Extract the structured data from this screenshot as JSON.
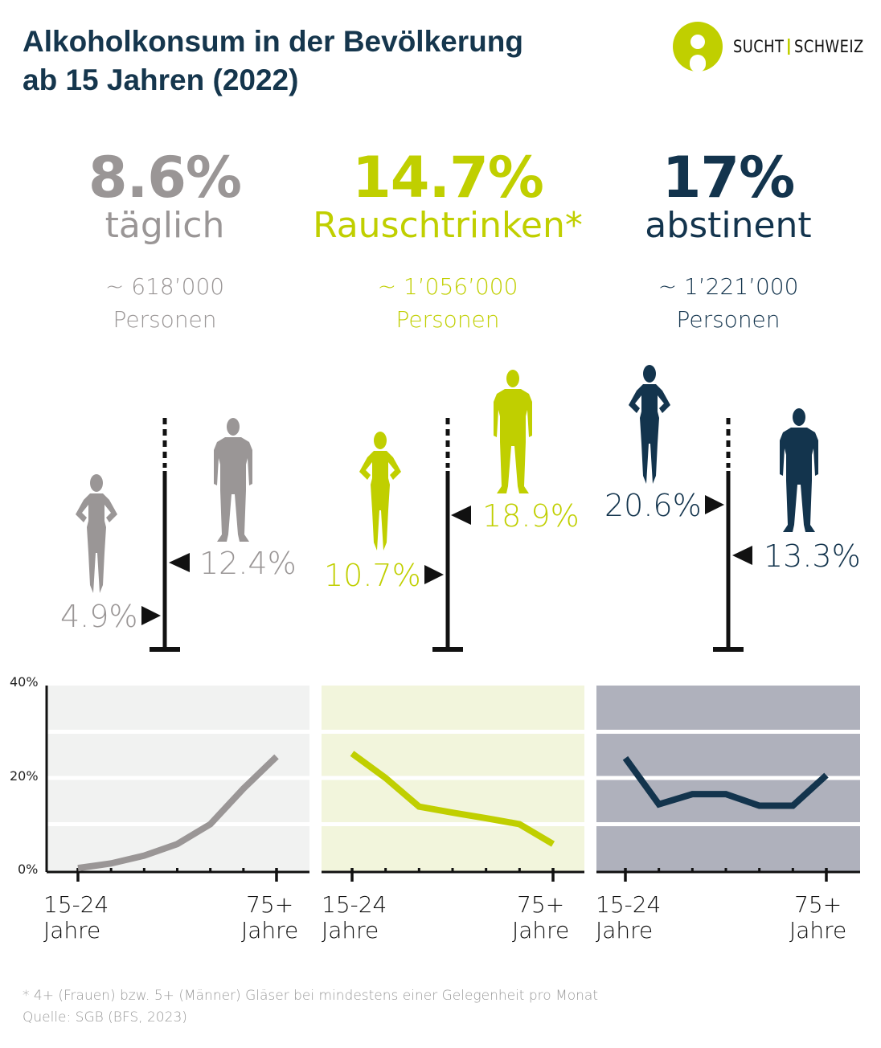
{
  "title_line1": "Alkoholkonsum in der Bevölkerung",
  "title_line2": "ab 15 Jahren (2022)",
  "logo": {
    "left": "SUCHT",
    "right": "SCHWEIZ"
  },
  "colors": {
    "grey": "#9a9696",
    "green": "#c0cf00",
    "navy": "#13344d",
    "title": "#15364d"
  },
  "stats": [
    {
      "value": "8.6%",
      "label": "täglich",
      "count": "~ 618’000",
      "unit": "Personen",
      "women": "4.9%",
      "men": "12.4%"
    },
    {
      "value": "14.7%",
      "label": "Rauschtrinken*",
      "count": "~ 1’056’000",
      "unit": "Personen",
      "women": "10.7%",
      "men": "18.9%"
    },
    {
      "value": "17%",
      "label": "abstinent",
      "count": "~ 1’221’000",
      "unit": "Personen",
      "women": "20.6%",
      "men": "13.3%"
    }
  ],
  "chart_data": [
    {
      "type": "line",
      "ylim": [
        0,
        40
      ],
      "yticks": [
        "0%",
        "20%",
        "40%"
      ],
      "grid": true,
      "categories": [
        "15-24 Jahre",
        "",
        "",
        "",
        "",
        "",
        "75+ Jahre"
      ],
      "values": [
        0.5,
        1.5,
        3.2,
        5.7,
        10,
        17.7,
        24.6
      ],
      "color": "#9a9696",
      "background": "#f1f2f1"
    },
    {
      "type": "line",
      "ylim": [
        0,
        40
      ],
      "grid": true,
      "categories": [
        "15-24 Jahre",
        "",
        "",
        "",
        "",
        "",
        "75+ Jahre"
      ],
      "values": [
        25.3,
        20,
        13.8,
        12.5,
        11.3,
        10,
        5.7
      ],
      "color": "#c0cf00",
      "background": "#f2f5dc"
    },
    {
      "type": "line",
      "ylim": [
        0,
        40
      ],
      "grid": true,
      "categories": [
        "15-24 Jahre",
        "",
        "",
        "",
        "",
        "",
        "75+ Jahre"
      ],
      "values": [
        24.3,
        14.3,
        16.5,
        16.5,
        14,
        14,
        20.6
      ],
      "color": "#13344d",
      "background": "#afb1bc"
    }
  ],
  "xlabels": {
    "first_line1": "15-24",
    "first_line2": "Jahre",
    "last_line1": "75+",
    "last_line2": "Jahre"
  },
  "footnote": "* 4+ (Frauen) bzw. 5+ (Männer) Gläser bei mindestens einer Gelegenheit pro Monat",
  "source": "Quelle: SGB (BFS, 2023)"
}
